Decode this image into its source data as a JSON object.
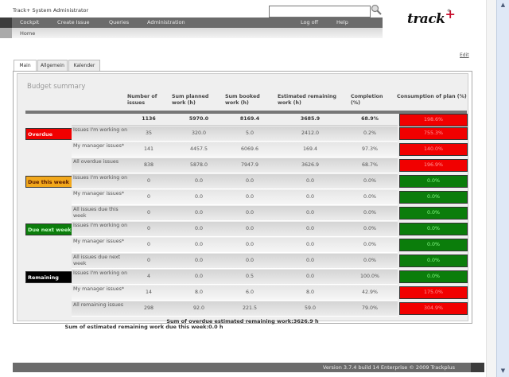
{
  "header": {
    "app_title": "Track+ System Administrator",
    "search_placeholder": "",
    "logo_text": "track",
    "logo_plus": "+",
    "logo_reg": "®"
  },
  "nav": {
    "items": [
      "Cockpit",
      "Create Issue",
      "Queries",
      "Administration"
    ],
    "right_items": [
      "Log off",
      "Help"
    ]
  },
  "breadcrumb": "Home",
  "edit_label": "Edit",
  "tabs": [
    "Main",
    "Allgemein",
    "Kalender"
  ],
  "budget": {
    "title": "Budget summary",
    "columns": [
      "Number of issues",
      "Sum planned work (h)",
      "Sum booked work (h)",
      "Estimated remaining work (h)",
      "Completion (%)",
      "Consumption of plan (%)"
    ],
    "total": {
      "issues": "1136",
      "planned": "5970.0",
      "booked": "8169.4",
      "remaining": "3685.9",
      "completion": "68.9%",
      "consumption": "198.6%"
    },
    "groups": [
      {
        "category": "Overdue",
        "color": "#f10000",
        "text_color": "#ffe0e0",
        "rows": [
          {
            "label": "Issues I'm working on",
            "issues": "35",
            "planned": "320.0",
            "booked": "5.0",
            "remaining": "2412.0",
            "completion": "0.2%",
            "consumption": "755.3%",
            "status": "red"
          },
          {
            "label": "My manager issues*",
            "issues": "141",
            "planned": "4457.5",
            "booked": "6069.6",
            "remaining": "169.4",
            "completion": "97.3%",
            "consumption": "140.0%",
            "status": "red"
          },
          {
            "label": "All overdue issues",
            "issues": "838",
            "planned": "5878.0",
            "booked": "7947.9",
            "remaining": "3626.9",
            "completion": "68.7%",
            "consumption": "196.9%",
            "status": "red"
          }
        ]
      },
      {
        "category": "Due this week",
        "color": "#f2a81c",
        "text_color": "#5a1a00",
        "rows": [
          {
            "label": "Issues I'm working on",
            "issues": "0",
            "planned": "0.0",
            "booked": "0.0",
            "remaining": "0.0",
            "completion": "0.0%",
            "consumption": "0.0%",
            "status": "green"
          },
          {
            "label": "My manager issues*",
            "issues": "0",
            "planned": "0.0",
            "booked": "0.0",
            "remaining": "0.0",
            "completion": "0.0%",
            "consumption": "0.0%",
            "status": "green"
          },
          {
            "label": "All issues due this week",
            "issues": "0",
            "planned": "0.0",
            "booked": "0.0",
            "remaining": "0.0",
            "completion": "0.0%",
            "consumption": "0.0%",
            "status": "green"
          }
        ]
      },
      {
        "category": "Due next week",
        "color": "#0b7d0b",
        "text_color": "#c8ffc8",
        "rows": [
          {
            "label": "Issues I'm working on",
            "issues": "0",
            "planned": "0.0",
            "booked": "0.0",
            "remaining": "0.0",
            "completion": "0.0%",
            "consumption": "0.0%",
            "status": "green"
          },
          {
            "label": "My manager issues*",
            "issues": "0",
            "planned": "0.0",
            "booked": "0.0",
            "remaining": "0.0",
            "completion": "0.0%",
            "consumption": "0.0%",
            "status": "green"
          },
          {
            "label": "All issues due next week",
            "issues": "0",
            "planned": "0.0",
            "booked": "0.0",
            "remaining": "0.0",
            "completion": "0.0%",
            "consumption": "0.0%",
            "status": "green"
          }
        ]
      },
      {
        "category": "Remaining",
        "color": "#000000",
        "text_color": "#ffffff",
        "rows": [
          {
            "label": "Issues I'm working on",
            "issues": "4",
            "planned": "0.0",
            "booked": "0.5",
            "remaining": "0.0",
            "completion": "100.0%",
            "consumption": "0.0%",
            "status": "green"
          },
          {
            "label": "My manager issues*",
            "issues": "14",
            "planned": "8.0",
            "booked": "6.0",
            "remaining": "8.0",
            "completion": "42.9%",
            "consumption": "175.0%",
            "status": "red"
          },
          {
            "label": "All remaining issues",
            "issues": "298",
            "planned": "92.0",
            "booked": "221.5",
            "remaining": "59.0",
            "completion": "79.0%",
            "consumption": "304.9%",
            "status": "red"
          }
        ]
      }
    ],
    "summary_overdue": "Sum of overdue estimated remaining work:3626.9 h",
    "summary_week": "Sum of estimated remaining work due this week:0.0 h"
  },
  "footer": "Version 3.7.4 build 14 Enterprise  © 2009 Trackplus",
  "colors": {
    "red": "#f10000",
    "green": "#0b7d0b",
    "nav": "#6b6b6b"
  }
}
